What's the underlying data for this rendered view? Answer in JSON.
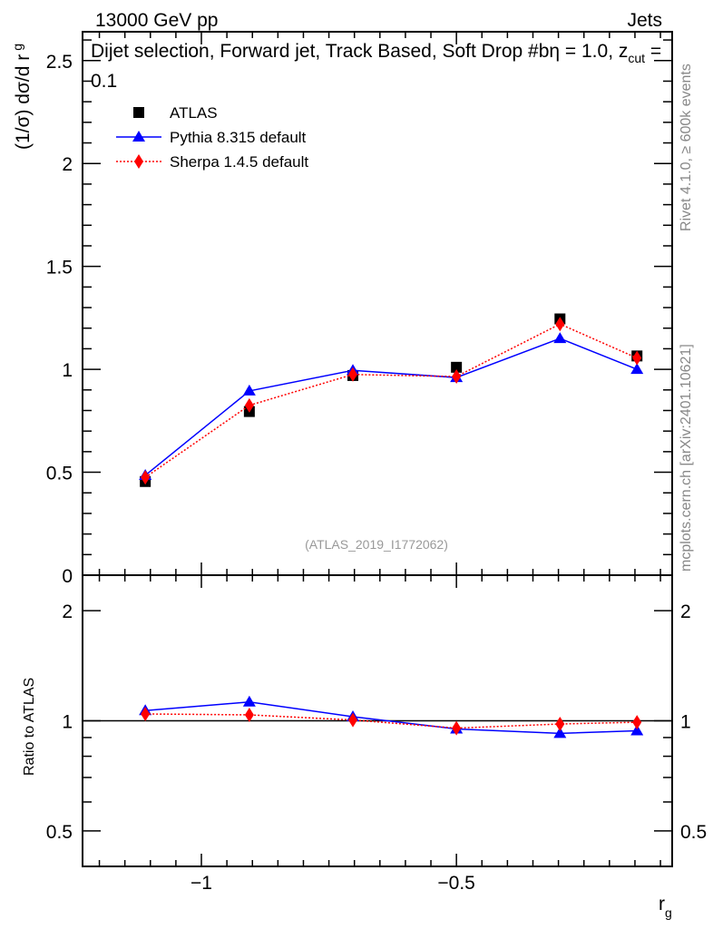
{
  "header": {
    "left": "13000 GeV pp",
    "right": "Jets"
  },
  "side_labels": {
    "rivet": "Rivet 4.1.0, ≥ 600k events",
    "mcplots": "mcplots.cern.ch [arXiv:2401.10621]"
  },
  "reference": "(ATLAS_2019_I1772062)",
  "chart_data": [
    {
      "type": "line",
      "title": "Dijet selection, Forward jet, Track Based, Soft Drop #b",
      "title_tail": "η = 1.0, z",
      "title_sub": "cut",
      "title_end": " = 0.1",
      "ylabel": "(1/σ) dσ/d r",
      "ylabel_sub": "g",
      "xlim": [
        -1.233,
        -0.077
      ],
      "ylim": [
        0,
        2.64
      ],
      "yticks": [
        "0",
        "0.5",
        "1",
        "1.5",
        "2",
        "2.5"
      ],
      "x": [
        -1.11,
        -0.906,
        -0.703,
        -0.5,
        -0.297,
        -0.146
      ],
      "series": [
        {
          "name": "ATLAS",
          "color": "#000000",
          "marker": "square",
          "values": [
            0.455,
            0.795,
            0.97,
            1.01,
            1.245,
            1.065
          ]
        },
        {
          "name": "Pythia 8.315 default",
          "color": "#0000ff",
          "marker": "triangle",
          "values": [
            0.485,
            0.895,
            0.995,
            0.96,
            1.15,
            1.0
          ]
        },
        {
          "name": "Sherpa 1.4.5 default",
          "color": "#ff0000",
          "marker": "diamond",
          "values": [
            0.475,
            0.825,
            0.975,
            0.965,
            1.22,
            1.055
          ]
        }
      ],
      "legend": "top-left"
    },
    {
      "type": "line",
      "ylabel": "Ratio to ATLAS",
      "xlabel": "r",
      "xlabel_sub": "g",
      "yscale": "log",
      "ylim": [
        0.4,
        2.5
      ],
      "yticks": [
        "0.5",
        "1",
        "2"
      ],
      "xticks": [
        "−1",
        "−0.5"
      ],
      "series": [
        {
          "name": "Pythia 8.315 default",
          "color": "#0000ff",
          "marker": "triangle",
          "values": [
            1.066,
            1.126,
            1.026,
            0.95,
            0.924,
            0.939
          ]
        },
        {
          "name": "Sherpa 1.4.5 default",
          "color": "#ff0000",
          "marker": "diamond",
          "values": [
            1.044,
            1.038,
            1.005,
            0.955,
            0.98,
            0.991
          ]
        }
      ]
    }
  ]
}
